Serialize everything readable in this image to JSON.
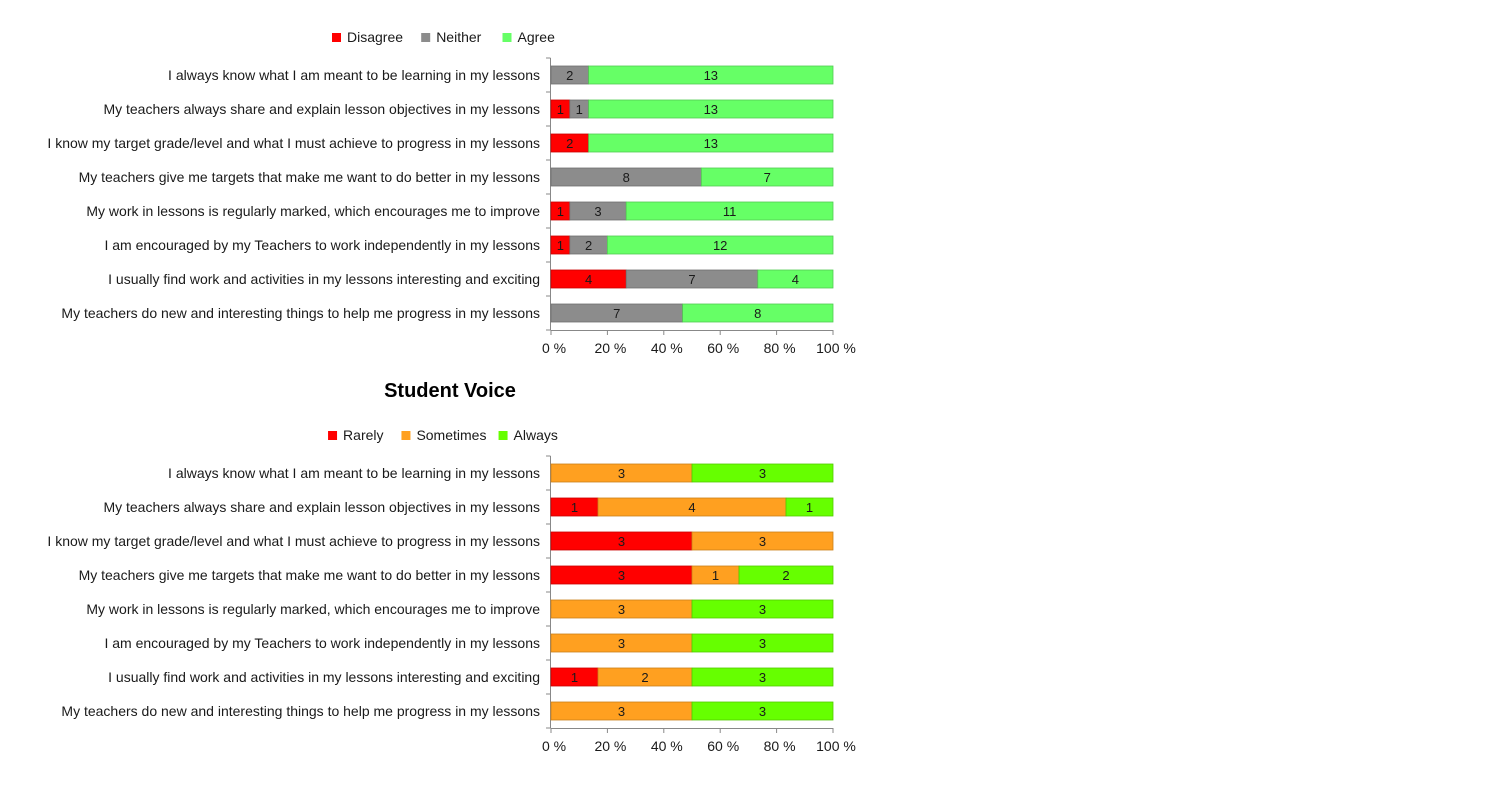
{
  "charts": [
    {
      "chart_data": {
        "type": "bar",
        "orientation": "horizontal",
        "stacked": "percent",
        "title": "",
        "legend_position": "top",
        "categories": [
          "I always know what I am meant to be learning in my lessons",
          "My teachers always share and explain lesson objectives in my lessons",
          "I know my target grade/level and what I must achieve to progress in my lessons",
          "My teachers give me targets that make me want to do better in my lessons",
          "My work in lessons is regularly marked, which encourages me to improve",
          "I am encouraged by my Teachers to work independently in my lessons",
          "I usually find work and activities in my lessons interesting and exciting",
          "My teachers do new and interesting things to help me progress in my lessons"
        ],
        "series": [
          {
            "name": "Disagree",
            "color": "#ff0000",
            "values": [
              0,
              1,
              2,
              0,
              1,
              1,
              4,
              0
            ]
          },
          {
            "name": "Neither",
            "color": "#8c8c8c",
            "values": [
              2,
              1,
              0,
              8,
              3,
              2,
              7,
              7
            ]
          },
          {
            "name": "Agree",
            "color": "#66ff66",
            "values": [
              13,
              13,
              13,
              7,
              11,
              12,
              4,
              8
            ]
          }
        ],
        "x_ticks": [
          "0 %",
          "20 %",
          "40 %",
          "60 %",
          "80 %",
          "100 %"
        ],
        "xlim": [
          0,
          100
        ]
      }
    },
    {
      "chart_data": {
        "type": "bar",
        "orientation": "horizontal",
        "stacked": "percent",
        "title": "Student Voice",
        "legend_position": "top",
        "categories": [
          "I always know what I am meant to be learning in my lessons",
          "My teachers always share and explain lesson objectives in my lessons",
          "I know my target grade/level and what I must achieve to progress in my lessons",
          "My teachers give me targets that make me want to do better in my lessons",
          "My work in lessons is regularly marked, which encourages me to improve",
          "I am encouraged by my Teachers to work independently in my lessons",
          "I usually find work and activities in my lessons interesting and exciting",
          "My teachers do new and interesting things to help me progress in my lessons"
        ],
        "series": [
          {
            "name": "Rarely",
            "color": "#ff0000",
            "values": [
              0,
              1,
              3,
              3,
              0,
              0,
              1,
              0
            ]
          },
          {
            "name": "Sometimes",
            "color": "#ffa020",
            "values": [
              3,
              4,
              3,
              1,
              3,
              3,
              2,
              3
            ]
          },
          {
            "name": "Always",
            "color": "#66ff00",
            "values": [
              3,
              1,
              0,
              2,
              3,
              3,
              3,
              3
            ]
          }
        ],
        "x_ticks": [
          "0 %",
          "20 %",
          "40 %",
          "60 %",
          "80 %",
          "100 %"
        ],
        "xlim": [
          0,
          100
        ]
      }
    }
  ]
}
